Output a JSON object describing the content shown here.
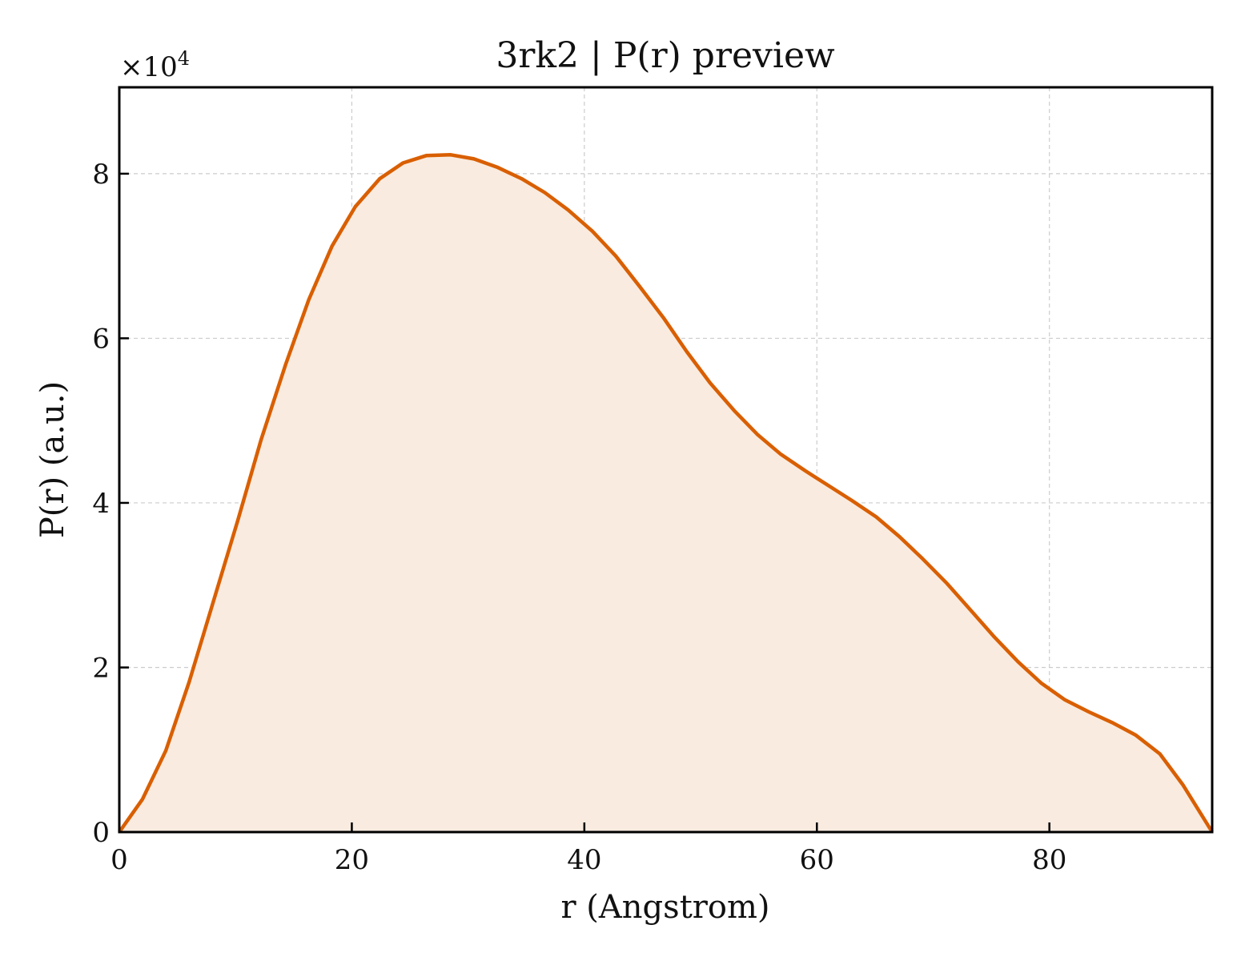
{
  "chart_data": {
    "type": "area",
    "title": "3rk2 | P(r) preview",
    "xlabel": "r (Angstrom)",
    "ylabel": "P(r) (a.u.)",
    "y_multiplier": "×10",
    "y_multiplier_exp": "4",
    "xlim": [
      0,
      94
    ],
    "ylim": [
      0,
      9.05
    ],
    "y_scale_factor": 10000,
    "xticks": [
      0,
      20,
      40,
      60,
      80
    ],
    "yticks": [
      0,
      2,
      4,
      6,
      8
    ],
    "grid": true,
    "line_color": "#d95f02",
    "fill_color": "#f9ebe0",
    "series": [
      {
        "x": [
          0,
          2,
          4,
          6,
          8,
          10.2,
          12.2,
          14.3,
          16.3,
          18.3,
          20.3,
          22.4,
          24.4,
          26.4,
          28.5,
          30.5,
          32.5,
          34.6,
          36.6,
          38.6,
          40.7,
          42.7,
          44.7,
          46.8,
          48.8,
          50.8,
          52.9,
          54.9,
          56.9,
          59.0,
          61.0,
          63.0,
          65.1,
          67.1,
          69.1,
          71.2,
          73.2,
          75.2,
          77.3,
          79.3,
          81.3,
          83.4,
          85.4,
          87.4,
          89.5,
          91.5,
          94.0
        ],
        "y": [
          0,
          0.4,
          0.99,
          1.82,
          2.76,
          3.79,
          4.77,
          5.68,
          6.47,
          7.12,
          7.6,
          7.94,
          8.13,
          8.22,
          8.23,
          8.18,
          8.08,
          7.94,
          7.77,
          7.56,
          7.3,
          7.0,
          6.64,
          6.25,
          5.84,
          5.46,
          5.12,
          4.83,
          4.59,
          4.39,
          4.21,
          4.03,
          3.83,
          3.59,
          3.32,
          3.02,
          2.7,
          2.38,
          2.07,
          1.81,
          1.61,
          1.46,
          1.33,
          1.18,
          0.95,
          0.57,
          0
        ]
      }
    ]
  }
}
